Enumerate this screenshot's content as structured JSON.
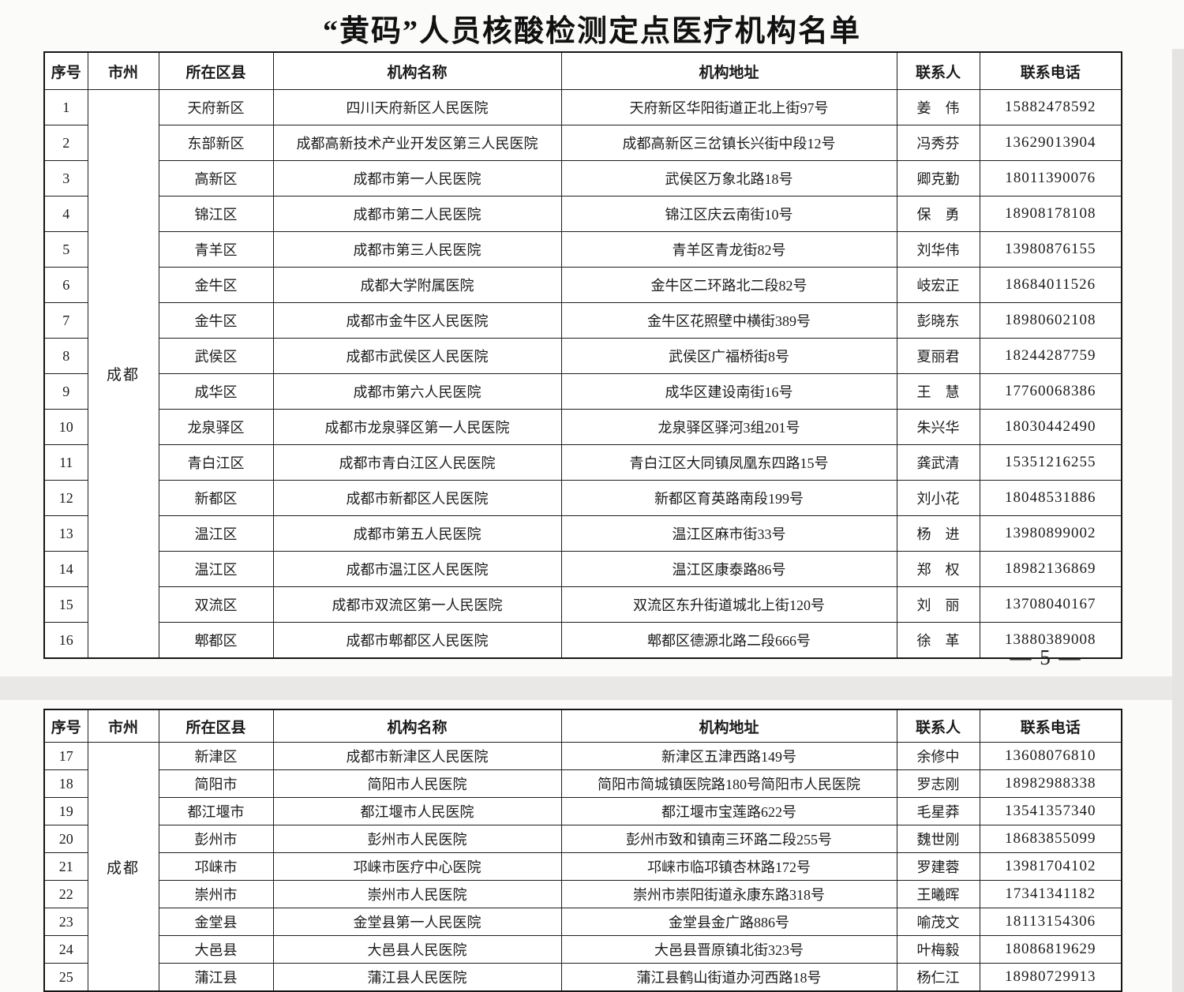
{
  "title": "“黄码”人员核酸检测定点医疗机构名单",
  "page_number": "— 5 —",
  "colors": {
    "text": "#1b1b1b",
    "border": "#1d1d1d",
    "page_break_band": "#e9e8e6"
  },
  "columns": [
    "序号",
    "市州",
    "所在区县",
    "机构名称",
    "机构地址",
    "联系人",
    "联系电话"
  ],
  "tables": [
    {
      "city": "成都",
      "rows": [
        {
          "no": "1",
          "district": "天府新区",
          "name": "四川天府新区人民医院",
          "address": "天府新区华阳街道正北上街97号",
          "contact": "姜　伟",
          "phone": "15882478592"
        },
        {
          "no": "2",
          "district": "东部新区",
          "name": "成都高新技术产业开发区第三人民医院",
          "address": "成都高新区三岔镇长兴街中段12号",
          "contact": "冯秀芬",
          "phone": "13629013904"
        },
        {
          "no": "3",
          "district": "高新区",
          "name": "成都市第一人民医院",
          "address": "武侯区万象北路18号",
          "contact": "卿克勤",
          "phone": "18011390076"
        },
        {
          "no": "4",
          "district": "锦江区",
          "name": "成都市第二人民医院",
          "address": "锦江区庆云南街10号",
          "contact": "保　勇",
          "phone": "18908178108"
        },
        {
          "no": "5",
          "district": "青羊区",
          "name": "成都市第三人民医院",
          "address": "青羊区青龙街82号",
          "contact": "刘华伟",
          "phone": "13980876155"
        },
        {
          "no": "6",
          "district": "金牛区",
          "name": "成都大学附属医院",
          "address": "金牛区二环路北二段82号",
          "contact": "岐宏正",
          "phone": "18684011526"
        },
        {
          "no": "7",
          "district": "金牛区",
          "name": "成都市金牛区人民医院",
          "address": "金牛区花照壁中横街389号",
          "contact": "彭晓东",
          "phone": "18980602108"
        },
        {
          "no": "8",
          "district": "武侯区",
          "name": "成都市武侯区人民医院",
          "address": "武侯区广福桥街8号",
          "contact": "夏丽君",
          "phone": "18244287759"
        },
        {
          "no": "9",
          "district": "成华区",
          "name": "成都市第六人民医院",
          "address": "成华区建设南街16号",
          "contact": "王　慧",
          "phone": "17760068386"
        },
        {
          "no": "10",
          "district": "龙泉驿区",
          "name": "成都市龙泉驿区第一人民医院",
          "address": "龙泉驿区驿河3组201号",
          "contact": "朱兴华",
          "phone": "18030442490"
        },
        {
          "no": "11",
          "district": "青白江区",
          "name": "成都市青白江区人民医院",
          "address": "青白江区大同镇凤凰东四路15号",
          "contact": "龚武清",
          "phone": "15351216255"
        },
        {
          "no": "12",
          "district": "新都区",
          "name": "成都市新都区人民医院",
          "address": "新都区育英路南段199号",
          "contact": "刘小花",
          "phone": "18048531886"
        },
        {
          "no": "13",
          "district": "温江区",
          "name": "成都市第五人民医院",
          "address": "温江区麻市街33号",
          "contact": "杨　进",
          "phone": "13980899002"
        },
        {
          "no": "14",
          "district": "温江区",
          "name": "成都市温江区人民医院",
          "address": "温江区康泰路86号",
          "contact": "郑　权",
          "phone": "18982136869"
        },
        {
          "no": "15",
          "district": "双流区",
          "name": "成都市双流区第一人民医院",
          "address": "双流区东升街道城北上街120号",
          "contact": "刘　丽",
          "phone": "13708040167"
        },
        {
          "no": "16",
          "district": "郫都区",
          "name": "成都市郫都区人民医院",
          "address": "郫都区德源北路二段666号",
          "contact": "徐　革",
          "phone": "13880389008"
        }
      ]
    },
    {
      "city": "成都",
      "rows": [
        {
          "no": "17",
          "district": "新津区",
          "name": "成都市新津区人民医院",
          "address": "新津区五津西路149号",
          "contact": "余修中",
          "phone": "13608076810"
        },
        {
          "no": "18",
          "district": "简阳市",
          "name": "简阳市人民医院",
          "address": "简阳市简城镇医院路180号简阳市人民医院",
          "contact": "罗志刚",
          "phone": "18982988338"
        },
        {
          "no": "19",
          "district": "都江堰市",
          "name": "都江堰市人民医院",
          "address": "都江堰市宝莲路622号",
          "contact": "毛星莽",
          "phone": "13541357340"
        },
        {
          "no": "20",
          "district": "彭州市",
          "name": "彭州市人民医院",
          "address": "彭州市致和镇南三环路二段255号",
          "contact": "魏世刚",
          "phone": "18683855099"
        },
        {
          "no": "21",
          "district": "邛崃市",
          "name": "邛崃市医疗中心医院",
          "address": "邛崃市临邛镇杏林路172号",
          "contact": "罗建蓉",
          "phone": "13981704102"
        },
        {
          "no": "22",
          "district": "崇州市",
          "name": "崇州市人民医院",
          "address": "崇州市崇阳街道永康东路318号",
          "contact": "王曦晖",
          "phone": "17341341182"
        },
        {
          "no": "23",
          "district": "金堂县",
          "name": "金堂县第一人民医院",
          "address": "金堂县金广路886号",
          "contact": "喻茂文",
          "phone": "18113154306"
        },
        {
          "no": "24",
          "district": "大邑县",
          "name": "大邑县人民医院",
          "address": "大邑县晋原镇北街323号",
          "contact": "叶梅毅",
          "phone": "18086819629"
        },
        {
          "no": "25",
          "district": "蒲江县",
          "name": "蒲江县人民医院",
          "address": "蒲江县鹤山街道办河西路18号",
          "contact": "杨仁江",
          "phone": "18980729913"
        }
      ]
    }
  ]
}
